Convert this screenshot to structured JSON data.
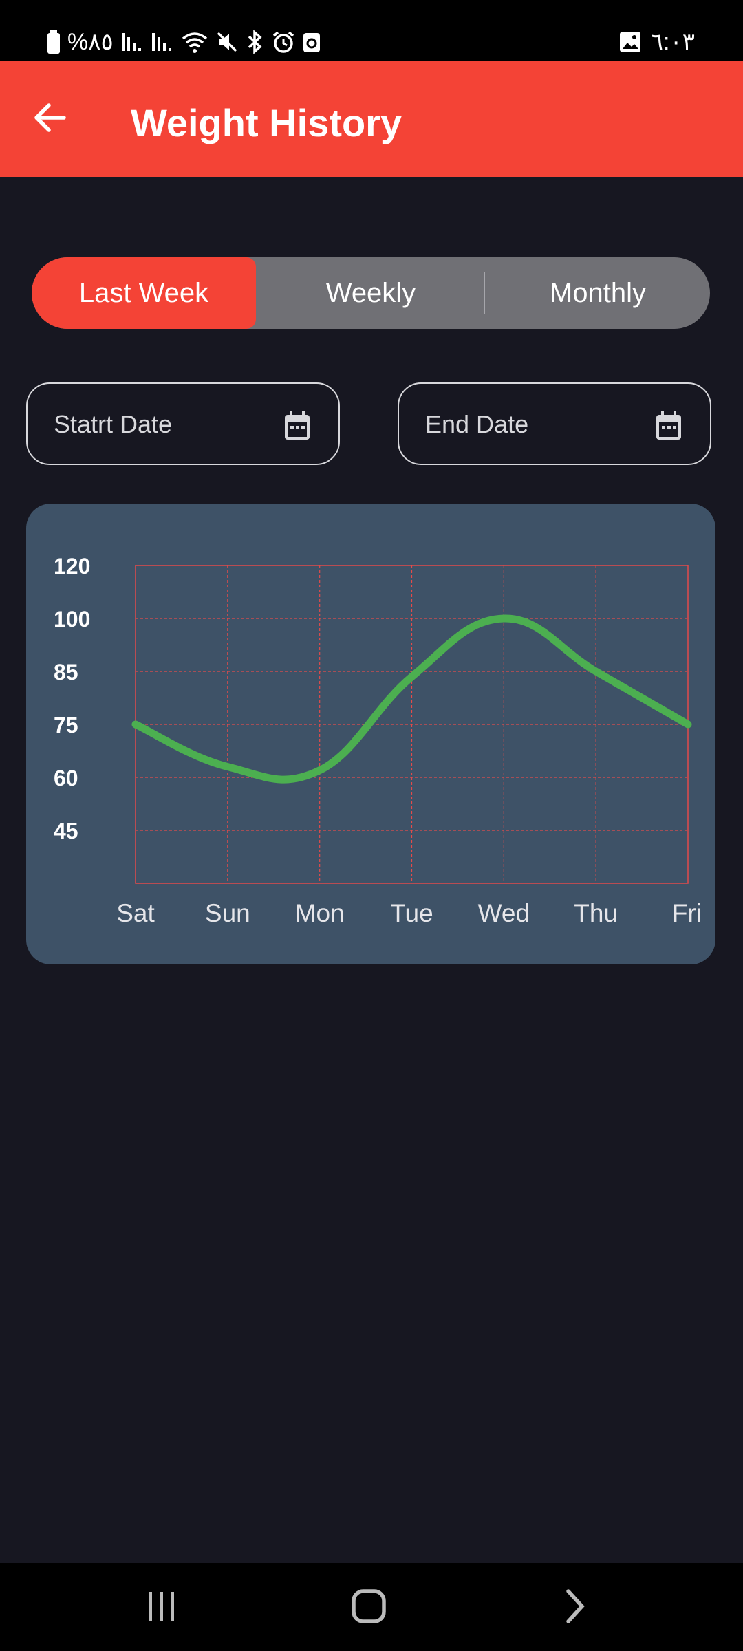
{
  "status_bar": {
    "battery_text": "%٨٥",
    "time": "٦:٠٣",
    "icons": [
      "battery-icon",
      "signal-icon",
      "signal-icon",
      "wifi-icon",
      "mute-icon",
      "bluetooth-icon",
      "alarm-icon",
      "recycle-icon",
      "gallery-icon"
    ]
  },
  "app_bar": {
    "title": "Weight History",
    "back_icon": "arrow-left-icon",
    "background": "#F44336"
  },
  "segments": {
    "items": [
      "Last Week",
      "Weekly",
      "Monthly"
    ],
    "selected": "Last Week",
    "active_color": "#F44336"
  },
  "date_fields": {
    "start_label": "Statrt Date",
    "end_label": "End Date",
    "icon": "calendar-icon"
  },
  "chart_data": {
    "type": "line",
    "categories": [
      "Sat",
      "Sun",
      "Mon",
      "Tue",
      "Wed",
      "Thu",
      "Fri"
    ],
    "y_ticks": [
      120,
      100,
      85,
      75,
      60,
      45
    ],
    "series": [
      {
        "values": [
          75,
          63,
          62,
          84,
          100,
          85,
          75
        ],
        "color": "#4CAF50"
      }
    ],
    "grid": true,
    "grid_color": "#E24B4B",
    "card_color": "#3E5267"
  },
  "nav_bar": {
    "icons": [
      "recent-apps-icon",
      "home-icon",
      "back-chevron-icon"
    ]
  }
}
